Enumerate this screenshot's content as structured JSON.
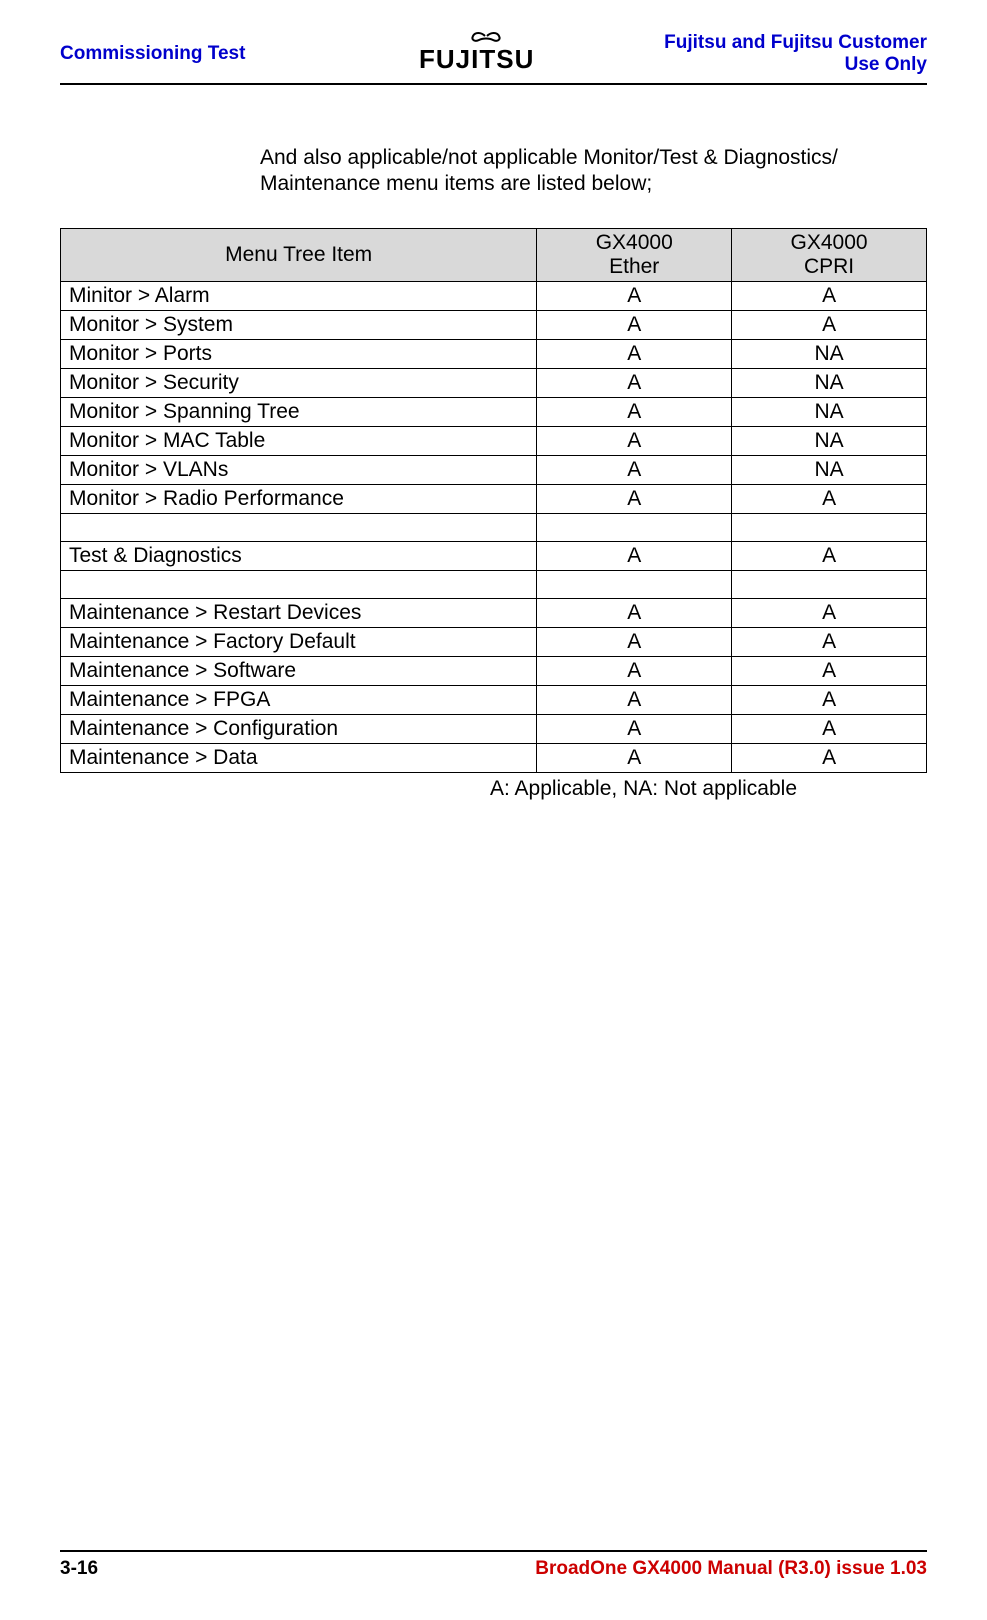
{
  "header": {
    "left": "Commissioning Test",
    "right": "Fujitsu and Fujitsu Customer Use Only",
    "logo_text": "FUJITSU"
  },
  "intro_text": "And also applicable/not applicable Monitor/Test & Diagnostics/ Maintenance menu items are listed below;",
  "table": {
    "columns": [
      "Menu Tree Item",
      "GX4000 Ether",
      "GX4000 CPRI"
    ],
    "rows": [
      {
        "item": "Minitor > Alarm",
        "ether": "A",
        "cpri": "A"
      },
      {
        "item": "Monitor > System",
        "ether": "A",
        "cpri": "A"
      },
      {
        "item": "Monitor > Ports",
        "ether": "A",
        "cpri": "NA"
      },
      {
        "item": "Monitor > Security",
        "ether": "A",
        "cpri": "NA"
      },
      {
        "item": "Monitor > Spanning Tree",
        "ether": "A",
        "cpri": "NA"
      },
      {
        "item": "Monitor > MAC Table",
        "ether": "A",
        "cpri": "NA"
      },
      {
        "item": "Monitor > VLANs",
        "ether": "A",
        "cpri": "NA"
      },
      {
        "item": "Monitor > Radio Performance",
        "ether": "A",
        "cpri": "A"
      },
      {
        "item": "",
        "ether": "",
        "cpri": ""
      },
      {
        "item": "Test & Diagnostics",
        "ether": "A",
        "cpri": "A"
      },
      {
        "item": "",
        "ether": "",
        "cpri": ""
      },
      {
        "item": "Maintenance > Restart Devices",
        "ether": "A",
        "cpri": "A"
      },
      {
        "item": "Maintenance > Factory Default",
        "ether": "A",
        "cpri": "A"
      },
      {
        "item": "Maintenance > Software",
        "ether": "A",
        "cpri": "A"
      },
      {
        "item": "Maintenance > FPGA",
        "ether": "A",
        "cpri": "A"
      },
      {
        "item": "Maintenance > Configuration",
        "ether": "A",
        "cpri": "A"
      },
      {
        "item": "Maintenance > Data",
        "ether": "A",
        "cpri": "A"
      }
    ]
  },
  "legend": "A: Applicable, NA: Not applicable",
  "footer": {
    "left": "3-16",
    "right": "BroadOne GX4000 Manual (R3.0) issue 1.03"
  }
}
